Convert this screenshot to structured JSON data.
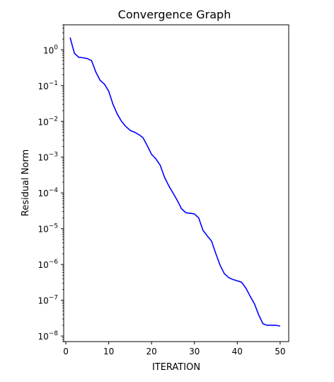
{
  "chart_data": {
    "type": "line",
    "title": "Convergence Graph",
    "xlabel": "ITERATION",
    "ylabel": "Residual Norm",
    "xlim": [
      -0.5,
      52
    ],
    "ylim": [
      7e-09,
      5
    ],
    "yscale": "log",
    "grid": false,
    "x_ticks": [
      0,
      10,
      20,
      30,
      40,
      50
    ],
    "y_ticks": [
      {
        "base": "10",
        "exp": "0",
        "value": 1
      },
      {
        "base": "10",
        "exp": "−1",
        "value": 0.1
      },
      {
        "base": "10",
        "exp": "−2",
        "value": 0.01
      },
      {
        "base": "10",
        "exp": "−3",
        "value": 0.001
      },
      {
        "base": "10",
        "exp": "−4",
        "value": 0.0001
      },
      {
        "base": "10",
        "exp": "−5",
        "value": 1e-05
      },
      {
        "base": "10",
        "exp": "−6",
        "value": 1e-06
      },
      {
        "base": "10",
        "exp": "−7",
        "value": 1e-07
      },
      {
        "base": "10",
        "exp": "−8",
        "value": 1e-08
      }
    ],
    "series": [
      {
        "color": "#0000ff",
        "x": [
          1,
          2,
          3,
          4,
          5,
          6,
          7,
          8,
          9,
          10,
          11,
          12,
          13,
          14,
          15,
          16,
          17,
          18,
          19,
          20,
          21,
          22,
          23,
          24,
          25,
          26,
          27,
          28,
          29,
          30,
          31,
          32,
          33,
          34,
          35,
          36,
          37,
          38,
          39,
          40,
          41,
          42,
          43,
          44,
          45,
          46,
          47,
          48,
          49,
          50
        ],
        "y": [
          2.2,
          0.8,
          0.62,
          0.6,
          0.57,
          0.5,
          0.24,
          0.14,
          0.11,
          0.07,
          0.03,
          0.016,
          0.01,
          0.0072,
          0.0056,
          0.005,
          0.0043,
          0.0035,
          0.0021,
          0.0012,
          0.0009,
          0.0006,
          0.00028,
          0.00016,
          0.0001,
          6.2e-05,
          3.6e-05,
          2.8e-05,
          2.7e-05,
          2.6e-05,
          2e-05,
          9e-06,
          6.3e-06,
          4.5e-06,
          2e-06,
          9.5e-07,
          5.5e-07,
          4.3e-07,
          3.8e-07,
          3.5e-07,
          3.2e-07,
          2.2e-07,
          1.3e-07,
          8e-08,
          3.9e-08,
          2.2e-08,
          2e-08,
          2e-08,
          2e-08,
          1.9e-08
        ]
      }
    ]
  }
}
